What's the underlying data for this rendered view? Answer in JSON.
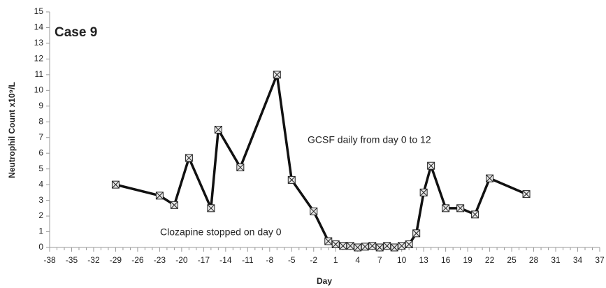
{
  "chart_data": {
    "type": "line",
    "title": "Case 9",
    "x_label": "Day",
    "y_label": "Neutrophil Count x10⁹/L",
    "annotations": [
      "GCSF daily from day 0 to 12",
      "Clozapine stopped on day 0"
    ],
    "x": [
      -29,
      -23,
      -21,
      -19,
      -16,
      -15,
      -12,
      -7,
      -5,
      -2,
      0,
      1,
      2,
      3,
      4,
      5,
      6,
      7,
      8,
      9,
      10,
      11,
      12,
      13,
      14,
      16,
      18,
      20,
      22,
      27
    ],
    "series": [
      {
        "name": "Neutrophil Count",
        "color": "#111111",
        "values": [
          4.0,
          3.3,
          2.7,
          5.7,
          2.5,
          7.5,
          5.1,
          11.0,
          4.3,
          2.3,
          0.4,
          0.2,
          0.1,
          0.1,
          0.0,
          0.05,
          0.1,
          0.0,
          0.1,
          0.0,
          0.1,
          0.2,
          0.9,
          3.5,
          5.2,
          2.5,
          2.5,
          2.1,
          4.4,
          3.4
        ]
      }
    ],
    "xlim": [
      -38,
      37
    ],
    "xticks": [
      -38,
      -35,
      -32,
      -29,
      -26,
      -23,
      -20,
      -17,
      -14,
      -11,
      -8,
      -5,
      -2,
      1,
      4,
      7,
      10,
      13,
      16,
      19,
      22,
      25,
      28,
      31,
      34,
      37
    ],
    "ylim": [
      0,
      15
    ],
    "yticks": [
      0,
      1,
      2,
      3,
      4,
      5,
      6,
      7,
      8,
      9,
      10,
      11,
      12,
      13,
      14,
      15
    ],
    "grid": false
  }
}
